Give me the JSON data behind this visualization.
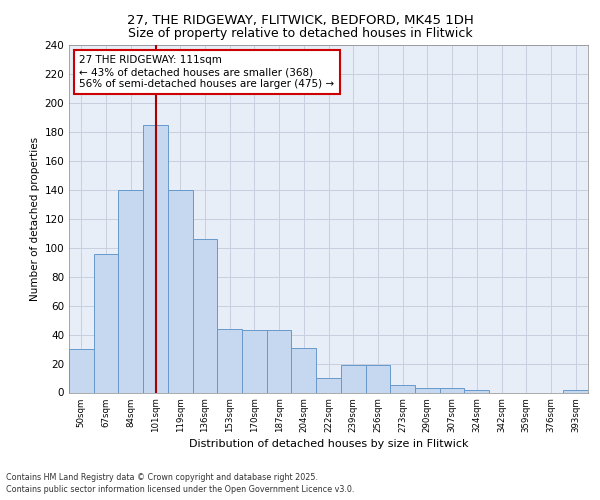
{
  "title1": "27, THE RIDGEWAY, FLITWICK, BEDFORD, MK45 1DH",
  "title2": "Size of property relative to detached houses in Flitwick",
  "xlabel": "Distribution of detached houses by size in Flitwick",
  "ylabel": "Number of detached properties",
  "categories": [
    "50sqm",
    "67sqm",
    "84sqm",
    "101sqm",
    "119sqm",
    "136sqm",
    "153sqm",
    "170sqm",
    "187sqm",
    "204sqm",
    "222sqm",
    "239sqm",
    "256sqm",
    "273sqm",
    "290sqm",
    "307sqm",
    "324sqm",
    "342sqm",
    "359sqm",
    "376sqm",
    "393sqm"
  ],
  "values": [
    30,
    96,
    140,
    185,
    140,
    106,
    44,
    43,
    43,
    31,
    10,
    19,
    19,
    5,
    3,
    3,
    2,
    0,
    0,
    0,
    2
  ],
  "bar_color": "#c5d8f0",
  "bar_edge_color": "#6699cc",
  "vline_x": 3.0,
  "vline_color": "#aa0000",
  "annotation_text": "27 THE RIDGEWAY: 111sqm\n← 43% of detached houses are smaller (368)\n56% of semi-detached houses are larger (475) →",
  "annotation_box_color": "#ffffff",
  "annotation_box_edge": "#cc0000",
  "ylim": [
    0,
    240
  ],
  "yticks": [
    0,
    20,
    40,
    60,
    80,
    100,
    120,
    140,
    160,
    180,
    200,
    220,
    240
  ],
  "bg_color": "#e8eef8",
  "grid_color": "#c8d0e0",
  "footer1": "Contains HM Land Registry data © Crown copyright and database right 2025.",
  "footer2": "Contains public sector information licensed under the Open Government Licence v3.0."
}
